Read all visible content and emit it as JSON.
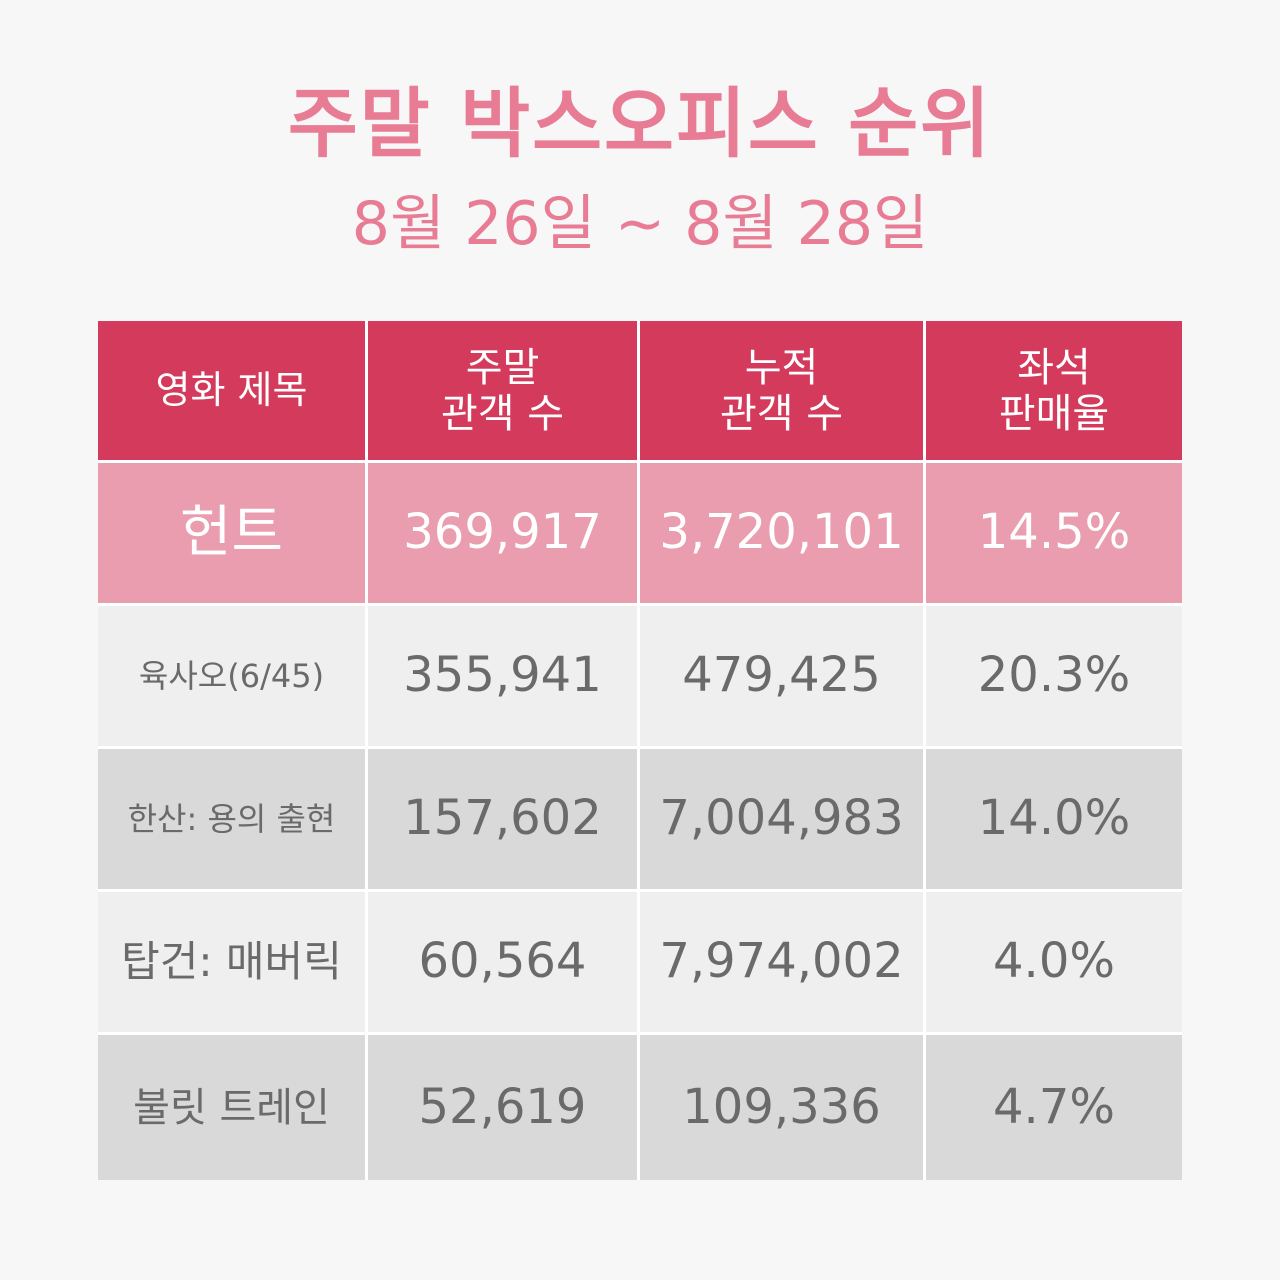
{
  "title": "주말 박스오피스 순위",
  "subtitle": "8월 26일 ~ 8월 28일",
  "table": {
    "headers": [
      {
        "line1": "영화 제목",
        "line2": ""
      },
      {
        "line1": "주말",
        "line2": "관객 수"
      },
      {
        "line1": "누적",
        "line2": "관객 수"
      },
      {
        "line1": "좌석",
        "line2": "판매율"
      }
    ],
    "rows": [
      {
        "title": "헌트",
        "weekend": "369,917",
        "total": "3,720,101",
        "seat": "14.5%"
      },
      {
        "title": "육사오(6/45)",
        "weekend": "355,941",
        "total": "479,425",
        "seat": "20.3%"
      },
      {
        "title": "한산: 용의 출현",
        "weekend": "157,602",
        "total": "7,004,983",
        "seat": "14.0%"
      },
      {
        "title": "탑건: 매버릭",
        "weekend": "60,564",
        "total": "7,974,002",
        "seat": "4.0%"
      },
      {
        "title": "불릿 트레인",
        "weekend": "52,619",
        "total": "109,336",
        "seat": "4.7%"
      }
    ]
  },
  "colors": {
    "title": "#e87c95",
    "header_bg": "#d43a5c",
    "highlight_bg": "#e99dae",
    "row_light": "#efefef",
    "row_dark": "#d9d9d9"
  }
}
